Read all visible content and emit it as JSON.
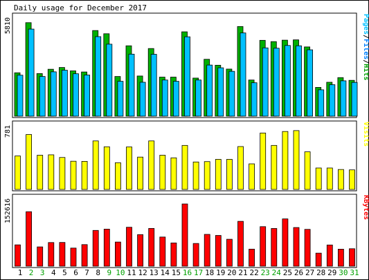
{
  "chart_data": [
    {
      "type": "bar",
      "title": "Daily usage for December 2017",
      "ymax_label": "5810",
      "legend": [
        {
          "name": "Pages",
          "color": "#00c0ff"
        },
        {
          "name": "Files",
          "color": "#0080ff"
        },
        {
          "name": "Hits",
          "color": "#00a000"
        }
      ],
      "legend_sep": "/",
      "ymax": 5810,
      "categories": [
        "1",
        "2",
        "3",
        "4",
        "5",
        "6",
        "7",
        "8",
        "9",
        "10",
        "11",
        "12",
        "13",
        "14",
        "15",
        "16",
        "17",
        "18",
        "19",
        "20",
        "21",
        "22",
        "23",
        "24",
        "25",
        "26",
        "27",
        "28",
        "29",
        "30",
        "31"
      ],
      "weekend_days": [
        "2",
        "3",
        "9",
        "10",
        "16",
        "17",
        "23",
        "24",
        "30",
        "31"
      ],
      "series": [
        {
          "name": "Hits",
          "color": "#00b000",
          "values": [
            2700,
            5820,
            2650,
            2920,
            3030,
            2820,
            2750,
            5330,
            5130,
            2470,
            4380,
            2500,
            4210,
            2430,
            2430,
            5250,
            2370,
            3540,
            3170,
            2930,
            5580,
            2250,
            4720,
            4640,
            4730,
            4750,
            4310,
            1790,
            2110,
            2400,
            2230
          ]
        },
        {
          "name": "Files",
          "color": "#00c0ff",
          "values": [
            2550,
            5420,
            2470,
            2760,
            2860,
            2640,
            2560,
            4950,
            4480,
            2170,
            3860,
            2110,
            3850,
            2250,
            2170,
            4940,
            2250,
            3180,
            3010,
            2790,
            5180,
            2080,
            4250,
            4230,
            4400,
            4380,
            4130,
            1640,
            1960,
            2200,
            2100
          ]
        }
      ]
    },
    {
      "type": "bar",
      "ymax_label": "781",
      "legend": [
        {
          "name": "Visits",
          "color": "#ffff00"
        }
      ],
      "ymax": 781,
      "categories": [
        "1",
        "2",
        "3",
        "4",
        "5",
        "6",
        "7",
        "8",
        "9",
        "10",
        "11",
        "12",
        "13",
        "14",
        "15",
        "16",
        "17",
        "18",
        "19",
        "20",
        "21",
        "22",
        "23",
        "24",
        "25",
        "26",
        "27",
        "28",
        "29",
        "30",
        "31"
      ],
      "series": [
        {
          "name": "Visits",
          "color": "#ffff00",
          "values": [
            445,
            730,
            455,
            460,
            425,
            375,
            373,
            645,
            567,
            355,
            565,
            430,
            645,
            455,
            420,
            585,
            365,
            370,
            400,
            400,
            570,
            340,
            750,
            585,
            770,
            782,
            500,
            285,
            285,
            265,
            260
          ]
        }
      ]
    },
    {
      "type": "bar",
      "ymax_label": "152616",
      "legend": [
        {
          "name": "KBytes",
          "color": "#ff0000"
        }
      ],
      "ymax": 152616,
      "categories": [
        "1",
        "2",
        "3",
        "4",
        "5",
        "6",
        "7",
        "8",
        "9",
        "10",
        "11",
        "12",
        "13",
        "14",
        "15",
        "16",
        "17",
        "18",
        "19",
        "20",
        "21",
        "22",
        "23",
        "24",
        "25",
        "26",
        "27",
        "28",
        "29",
        "30",
        "31"
      ],
      "series": [
        {
          "name": "KBytes",
          "color": "#ff0000",
          "values": [
            52300,
            133600,
            47300,
            58000,
            58200,
            44400,
            52900,
            87700,
            90900,
            59200,
            95500,
            77400,
            92600,
            71500,
            57000,
            152600,
            55700,
            78000,
            75400,
            66000,
            110000,
            41800,
            97000,
            92500,
            116000,
            94800,
            90300,
            32000,
            52000,
            41700,
            42800
          ]
        }
      ]
    }
  ]
}
